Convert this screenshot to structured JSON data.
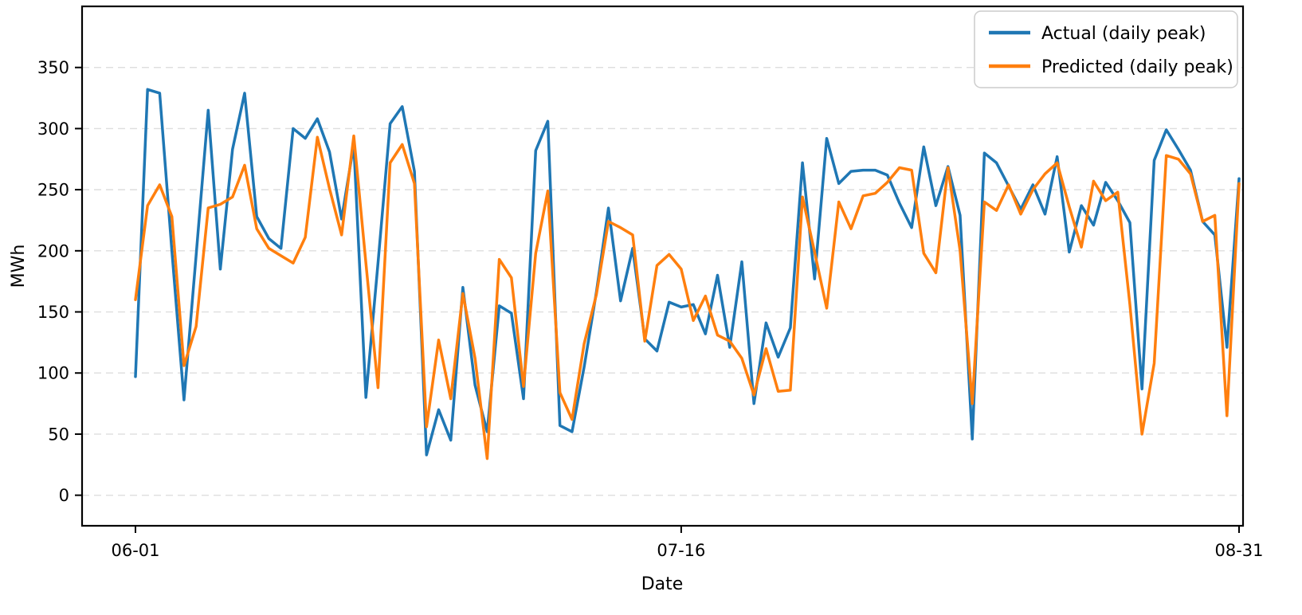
{
  "chart_data": {
    "type": "line",
    "title": "",
    "xlabel": "Date",
    "ylabel": "MWh",
    "grid": "horizontal-dashed",
    "grid_color": "#dedede",
    "background_color": "#ffffff",
    "legend_position": "upper right",
    "x_unit": "day",
    "x_start_date": "06-01",
    "x_end_date": "08-31",
    "n_points": 92,
    "x_tick_labels": [
      "06-01",
      "07-16",
      "08-31"
    ],
    "x_tick_indices": [
      0,
      45,
      91
    ],
    "y_ticks": [
      0,
      50,
      100,
      150,
      200,
      250,
      300,
      350
    ],
    "ylim": [
      -25,
      400
    ],
    "series": [
      {
        "name": "Actual (daily peak)",
        "color": "#1f77b4",
        "values": [
          97,
          332,
          329,
          200,
          78,
          196,
          315,
          185,
          283,
          329,
          228,
          210,
          202,
          300,
          292,
          308,
          281,
          226,
          287,
          80,
          190,
          304,
          318,
          265,
          33,
          70,
          45,
          170,
          90,
          52,
          155,
          149,
          79,
          282,
          306,
          57,
          52,
          105,
          166,
          235,
          159,
          202,
          128,
          118,
          158,
          154,
          156,
          132,
          180,
          121,
          191,
          75,
          141,
          113,
          137,
          272,
          177,
          292,
          255,
          265,
          266,
          266,
          262,
          239,
          219,
          285,
          237,
          269,
          229,
          46,
          280,
          272,
          253,
          234,
          254,
          230,
          277,
          199,
          237,
          221,
          256,
          241,
          223,
          87,
          274,
          299,
          283,
          266,
          224,
          213,
          121,
          259
        ]
      },
      {
        "name": "Predicted (daily peak)",
        "color": "#ff7f0e",
        "values": [
          160,
          237,
          254,
          228,
          106,
          138,
          235,
          238,
          244,
          270,
          218,
          202,
          196,
          190,
          211,
          293,
          251,
          213,
          294,
          190,
          88,
          272,
          287,
          255,
          56,
          127,
          79,
          165,
          112,
          30,
          193,
          178,
          89,
          198,
          249,
          84,
          62,
          124,
          164,
          224,
          219,
          213,
          126,
          188,
          197,
          185,
          143,
          163,
          131,
          126,
          112,
          82,
          120,
          85,
          86,
          244,
          199,
          153,
          240,
          218,
          245,
          247,
          256,
          268,
          266,
          198,
          182,
          268,
          200,
          75,
          240,
          233,
          254,
          230,
          250,
          263,
          272,
          236,
          203,
          257,
          241,
          248,
          156,
          50,
          108,
          278,
          275,
          263,
          224,
          229,
          65,
          255
        ]
      }
    ]
  }
}
